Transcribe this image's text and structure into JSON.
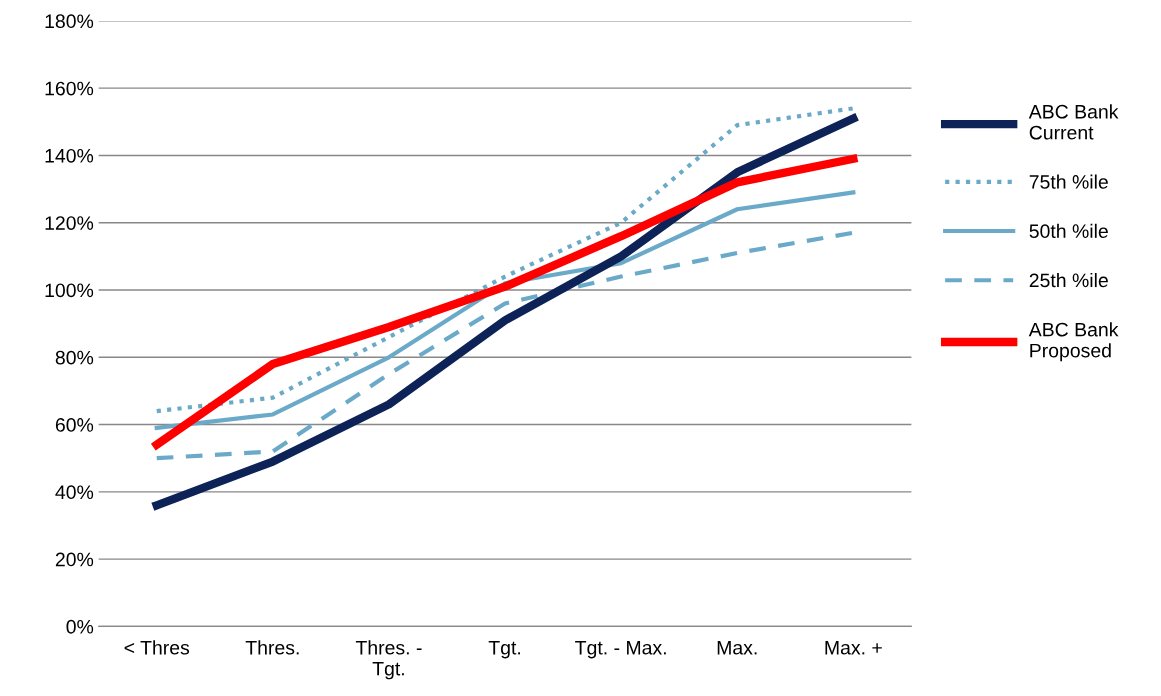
{
  "chart_data": {
    "type": "line",
    "categories": [
      "< Thres",
      "Thres.",
      "Thres. -\nTgt.",
      "Tgt.",
      "Tgt. - Max.",
      "Max.",
      "Max. +"
    ],
    "series": [
      {
        "name": "ABC Bank\nCurrent",
        "color": "#0d2358",
        "line_style": "solid",
        "values": [
          36,
          49,
          66,
          91,
          110,
          135,
          151
        ]
      },
      {
        "name": "75th %ile",
        "color": "#6aaac8",
        "line_style": "dotted",
        "values": [
          64,
          68,
          86,
          104,
          120,
          149,
          154
        ]
      },
      {
        "name": "50th %ile",
        "color": "#6aaac8",
        "line_style": "solid",
        "values": [
          59,
          63,
          80,
          102,
          108,
          124,
          129
        ]
      },
      {
        "name": "25th %ile",
        "color": "#6aaac8",
        "line_style": "dashed",
        "values": [
          50,
          52,
          75,
          96,
          104,
          111,
          117
        ]
      },
      {
        "name": "ABC Bank\nProposed",
        "color": "#ff0000",
        "line_style": "solid",
        "values": [
          54,
          78,
          89,
          101,
          116,
          132,
          139
        ]
      }
    ],
    "ylim": [
      0,
      180
    ],
    "yticks": [
      {
        "value": 0,
        "label": "0%"
      },
      {
        "value": 20,
        "label": "20%"
      },
      {
        "value": 40,
        "label": "40%"
      },
      {
        "value": 60,
        "label": "60%"
      },
      {
        "value": 80,
        "label": "80%"
      },
      {
        "value": 100,
        "label": "100%"
      },
      {
        "value": 120,
        "label": "120%"
      },
      {
        "value": 140,
        "label": "140%"
      },
      {
        "value": 160,
        "label": "160%"
      },
      {
        "value": 180,
        "label": "180%"
      }
    ],
    "grid": "y",
    "legend": "right",
    "marker": "none"
  }
}
